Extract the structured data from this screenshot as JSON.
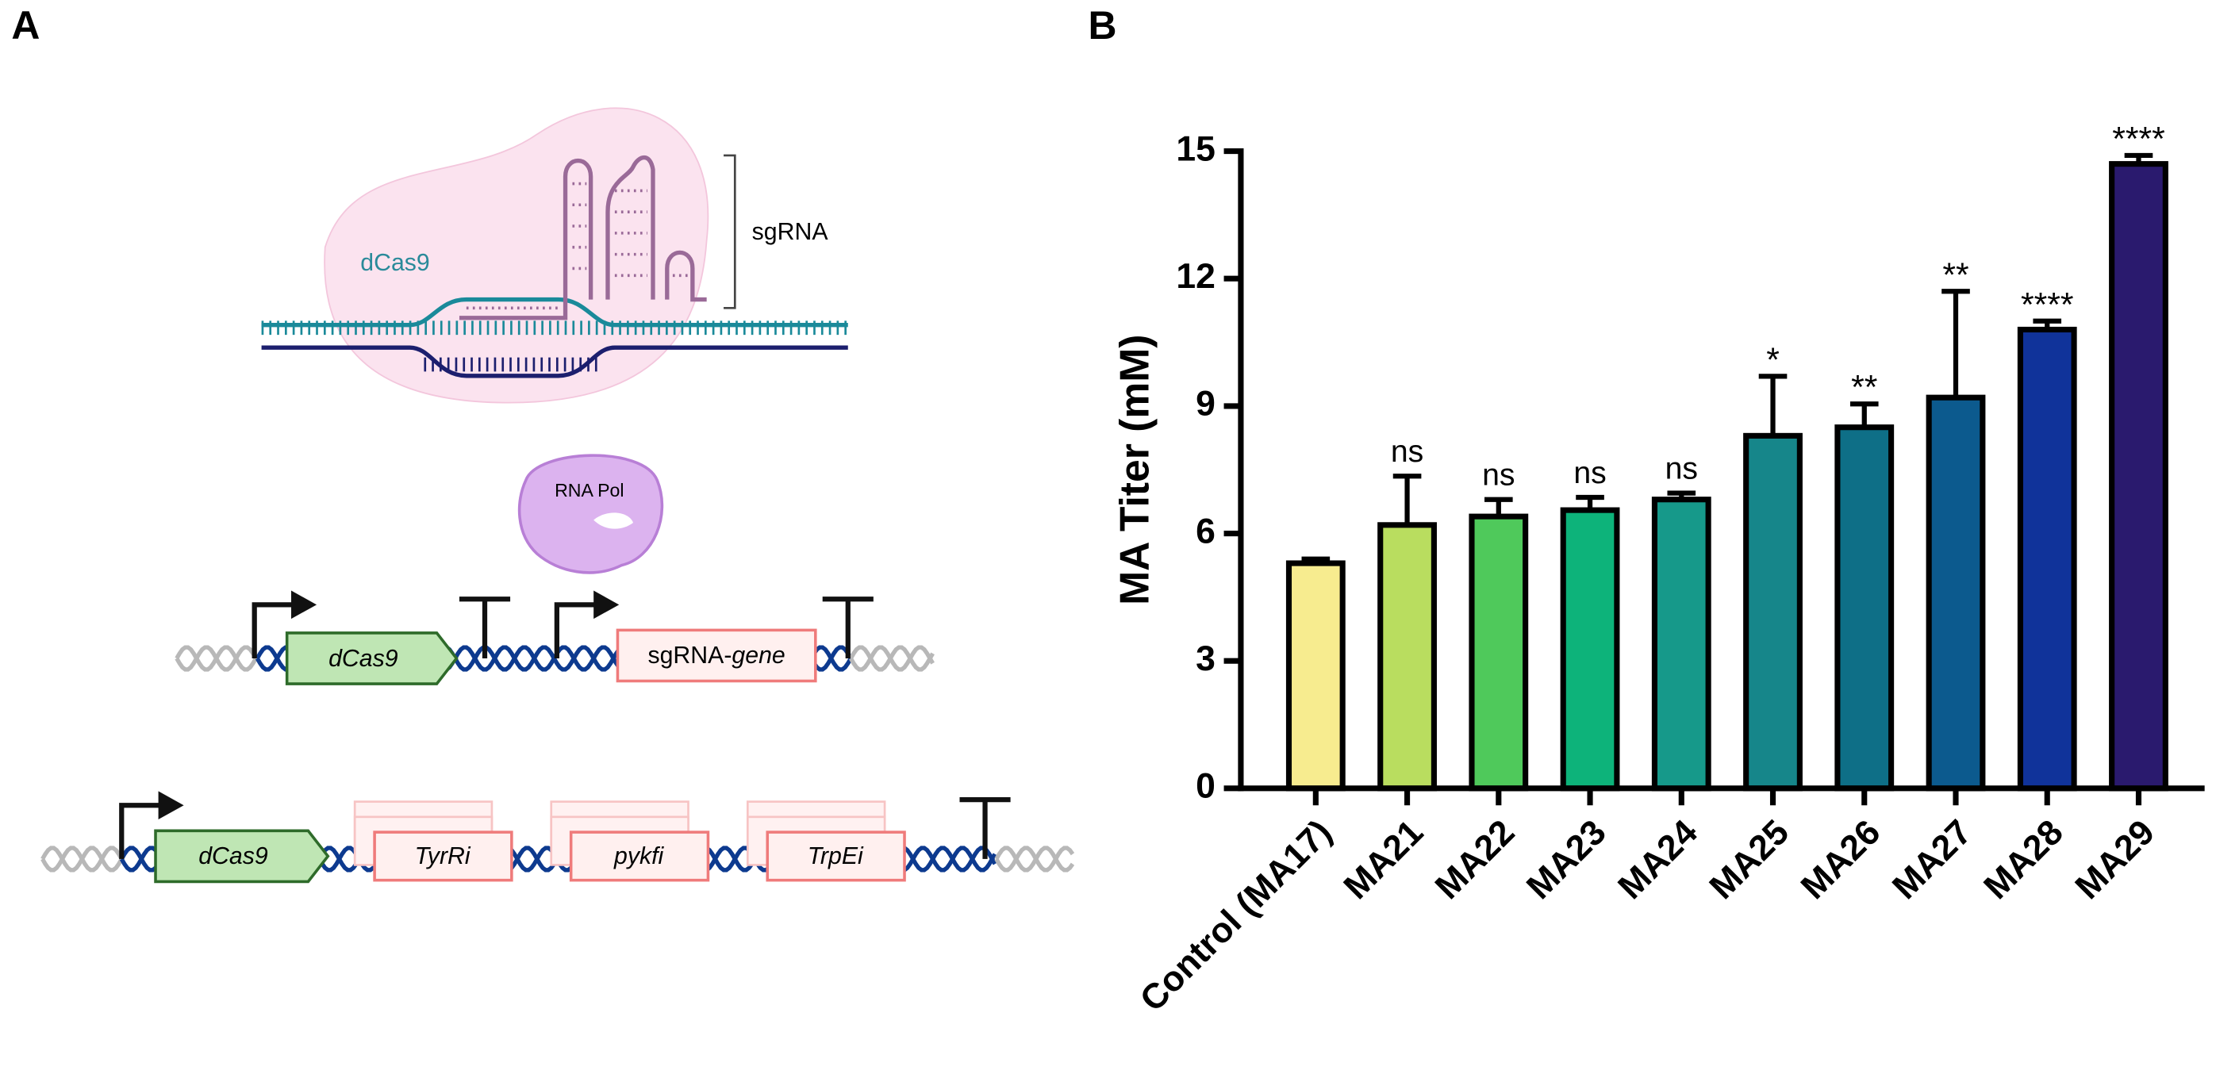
{
  "panels": {
    "a": "A",
    "b": "B"
  },
  "diagram": {
    "complex": {
      "protein": "dCas9",
      "guide": "sgRNA"
    },
    "polymerase": "RNA Pol",
    "construct1": {
      "gene": "dCas9",
      "guide_prefix": "sgRNA-",
      "guide_suffix": "gene"
    },
    "construct2": {
      "gene": "dCas9",
      "targets": [
        "TyrRi",
        "pykfi",
        "TrpEi"
      ]
    }
  },
  "chart_data": {
    "type": "bar",
    "ylabel": "MA Titer (mM)",
    "categories": [
      "Control (MA17)",
      "MA21",
      "MA22",
      "MA23",
      "MA24",
      "MA25",
      "MA26",
      "MA27",
      "MA28",
      "MA29"
    ],
    "values": [
      5.3,
      6.2,
      6.4,
      6.55,
      6.8,
      8.3,
      8.5,
      9.2,
      10.8,
      14.7
    ],
    "errors": [
      0.1,
      1.15,
      0.4,
      0.3,
      0.15,
      1.4,
      0.55,
      2.5,
      0.2,
      0.2
    ],
    "annotations": [
      null,
      "ns",
      "ns",
      "ns",
      "ns",
      "*",
      "**",
      "**",
      "****",
      "****"
    ],
    "colors": [
      "#f7ec8f",
      "#b9dd5f",
      "#4fc95b",
      "#0db37a",
      "#16998a",
      "#16868a",
      "#0e6f87",
      "#0c5a8e",
      "#10339a",
      "#2a1a6e"
    ],
    "ylim": [
      0,
      15
    ],
    "yticks": [
      0,
      3,
      6,
      9,
      12,
      15
    ]
  }
}
